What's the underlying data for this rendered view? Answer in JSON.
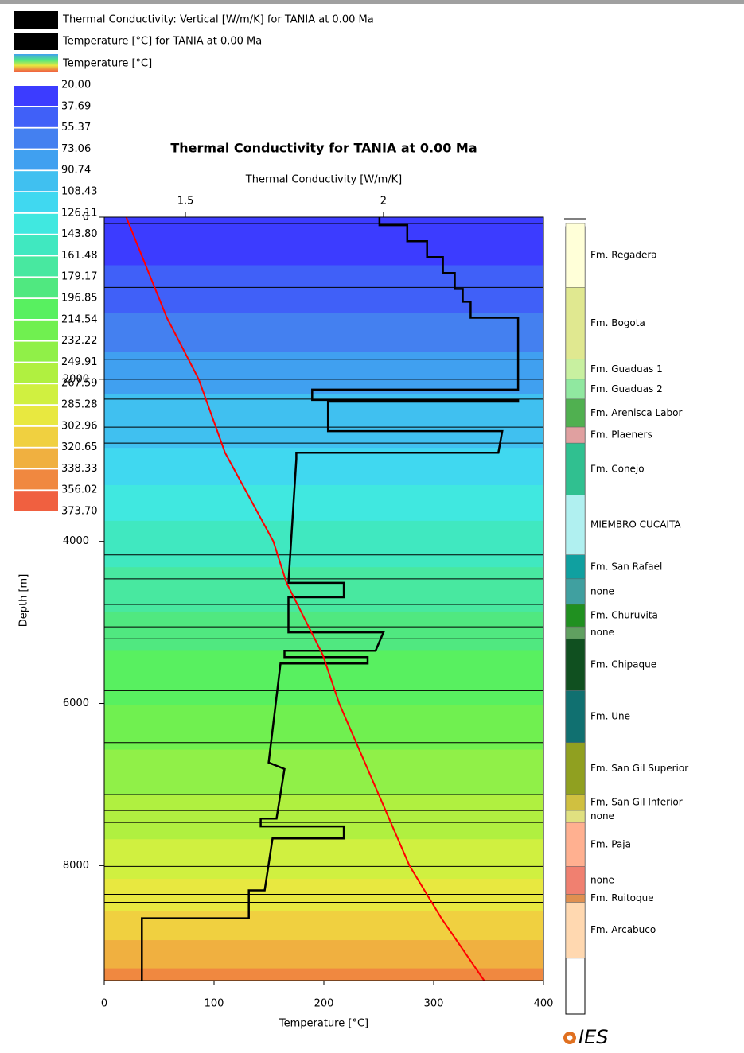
{
  "chart_data": {
    "type": "well-log",
    "title": "Thermal Conductivity for TANIA at 0.00 Ma",
    "x_label": "Temperature [°C]",
    "x2_label": "Thermal Conductivity [W/m/K]",
    "y_label": "Depth [m]",
    "xlim": [
      0,
      400
    ],
    "xticks": [
      0,
      100,
      200,
      300,
      400
    ],
    "x2lim": [
      1.295,
      2.404
    ],
    "x2ticks": [
      1.5,
      2
    ],
    "ylim": [
      0,
      9419
    ],
    "yticks": [
      0,
      2000,
      4000,
      6000,
      8000
    ],
    "y_inverted": true,
    "series": [
      {
        "name": "Thermal Conductivity: Vertical [W/m/K] for TANIA at 0.00 Ma",
        "color": "#000000",
        "legend_color": "#000000",
        "axis": "x2",
        "depth": [
          0,
          99,
          99,
          296,
          296,
          493,
          493,
          690,
          690,
          887,
          887,
          1044,
          1044,
          1241,
          1241,
          2128,
          2128,
          2256,
          2256,
          2276,
          2276,
          2640,
          2640,
          2906,
          2906,
          2985,
          4512,
          4512,
          4690,
          4690,
          5123,
          5123,
          5350,
          5350,
          5429,
          5429,
          5507,
          5507,
          6729,
          6808,
          7419,
          7419,
          7517,
          7517,
          7665,
          7665,
          8305,
          8305,
          8650,
          8650,
          9419
        ],
        "values": [
          1.99,
          1.99,
          2.06,
          2.06,
          2.11,
          2.11,
          2.15,
          2.15,
          2.18,
          2.18,
          2.2,
          2.2,
          2.22,
          2.22,
          2.34,
          2.34,
          1.82,
          1.82,
          2.34,
          2.34,
          1.86,
          1.86,
          2.3,
          2.29,
          1.78,
          1.78,
          1.76,
          1.9,
          1.9,
          1.76,
          1.76,
          2.0,
          1.98,
          1.75,
          1.75,
          1.96,
          1.96,
          1.74,
          1.71,
          1.75,
          1.73,
          1.69,
          1.69,
          1.9,
          1.9,
          1.72,
          1.7,
          1.66,
          1.66,
          1.39,
          1.39
        ]
      },
      {
        "name": "Temperature [°C] for TANIA at 0.00 Ma",
        "color": "#ff0000",
        "legend_color": "#000000",
        "axis": "x",
        "depth": [
          0,
          1241,
          2000,
          2906,
          4000,
          4512,
          5399,
          6000,
          8000,
          8650,
          9419
        ],
        "values": [
          20,
          57,
          86,
          110,
          154,
          166,
          199,
          214,
          278,
          307,
          346
        ]
      }
    ],
    "color_scale": {
      "title": "Temperature [°C]",
      "values": [
        {
          "value": 20,
          "label": "20.00"
        },
        37.69,
        55.37,
        73.06,
        90.74,
        108.43,
        126.11,
        {
          "value": 143.8,
          "label": "143.80"
        },
        161.48,
        179.17,
        196.85,
        214.54,
        232.22,
        249.91,
        267.59,
        285.28,
        302.96,
        320.65,
        338.33,
        356.02,
        {
          "value": 373.7,
          "label": "373.70"
        }
      ],
      "colors": [
        "#3c3cff",
        "#4060f8",
        "#4480f0",
        "#40a0f0",
        "#40c0f0",
        "#40d8f0",
        "#40e8e0",
        "#40e8c0",
        "#48e8a0",
        "#50e880",
        "#58f060",
        "#70f050",
        "#90f048",
        "#b0f040",
        "#d0f040",
        "#e8e840",
        "#f0d040",
        "#f0b040",
        "#f08840",
        "#f06040"
      ]
    },
    "formations": [
      {
        "name": "Fm. Regadera",
        "top": 79,
        "base": 867,
        "color": "#ffffd8"
      },
      {
        "name": "Fm. Bogota",
        "top": 867,
        "base": 1754,
        "color": "#e0e890"
      },
      {
        "name": "Fm. Guaduas 1",
        "top": 1754,
        "base": 2000,
        "color": "#c8f0a0"
      },
      {
        "name": "Fm. Guaduas 2",
        "top": 2000,
        "base": 2246,
        "color": "#90e8a0"
      },
      {
        "name": "Fm. Arenisca Labor",
        "top": 2246,
        "base": 2591,
        "color": "#50b050"
      },
      {
        "name": "Fm. Plaeners",
        "top": 2591,
        "base": 2788,
        "color": "#e0a0a0"
      },
      {
        "name": "Fm. Conejo",
        "top": 2788,
        "base": 3429,
        "color": "#30c090"
      },
      {
        "name": "MIEMBRO CUCAITA",
        "top": 3429,
        "base": 4167,
        "color": "#b0f0f0"
      },
      {
        "name": "Fm. San Rafael",
        "top": 4167,
        "base": 4463,
        "color": "#10a0a0"
      },
      {
        "name": "none",
        "top": 4463,
        "base": 4778,
        "color": "#40a0a0"
      },
      {
        "name": "Fm. Churuvita",
        "top": 4778,
        "base": 5054,
        "color": "#209020"
      },
      {
        "name": "none",
        "top": 5054,
        "base": 5202,
        "color": "#60a060"
      },
      {
        "name": "Fm. Chipaque",
        "top": 5202,
        "base": 5842,
        "color": "#105020"
      },
      {
        "name": "Fm. Une",
        "top": 5842,
        "base": 6483,
        "color": "#107070"
      },
      {
        "name": "Fm. San Gil Superior",
        "top": 6483,
        "base": 7123,
        "color": "#90a020"
      },
      {
        "name": "Fm, San Gil Inferior",
        "top": 7123,
        "base": 7320,
        "color": "#d0c040"
      },
      {
        "name": "none",
        "top": 7320,
        "base": 7468,
        "color": "#e0e080"
      },
      {
        "name": "Fm. Paja",
        "top": 7468,
        "base": 8010,
        "color": "#ffb090"
      },
      {
        "name": "none",
        "top": 8010,
        "base": 8355,
        "color": "#f08070"
      },
      {
        "name": "Fm. Ruitoque",
        "top": 8355,
        "base": 8453,
        "color": "#e09050"
      },
      {
        "name": "Fm. Arcabuco",
        "top": 8453,
        "base": 9143,
        "color": "#ffd8b0"
      }
    ],
    "logo": "IES"
  }
}
